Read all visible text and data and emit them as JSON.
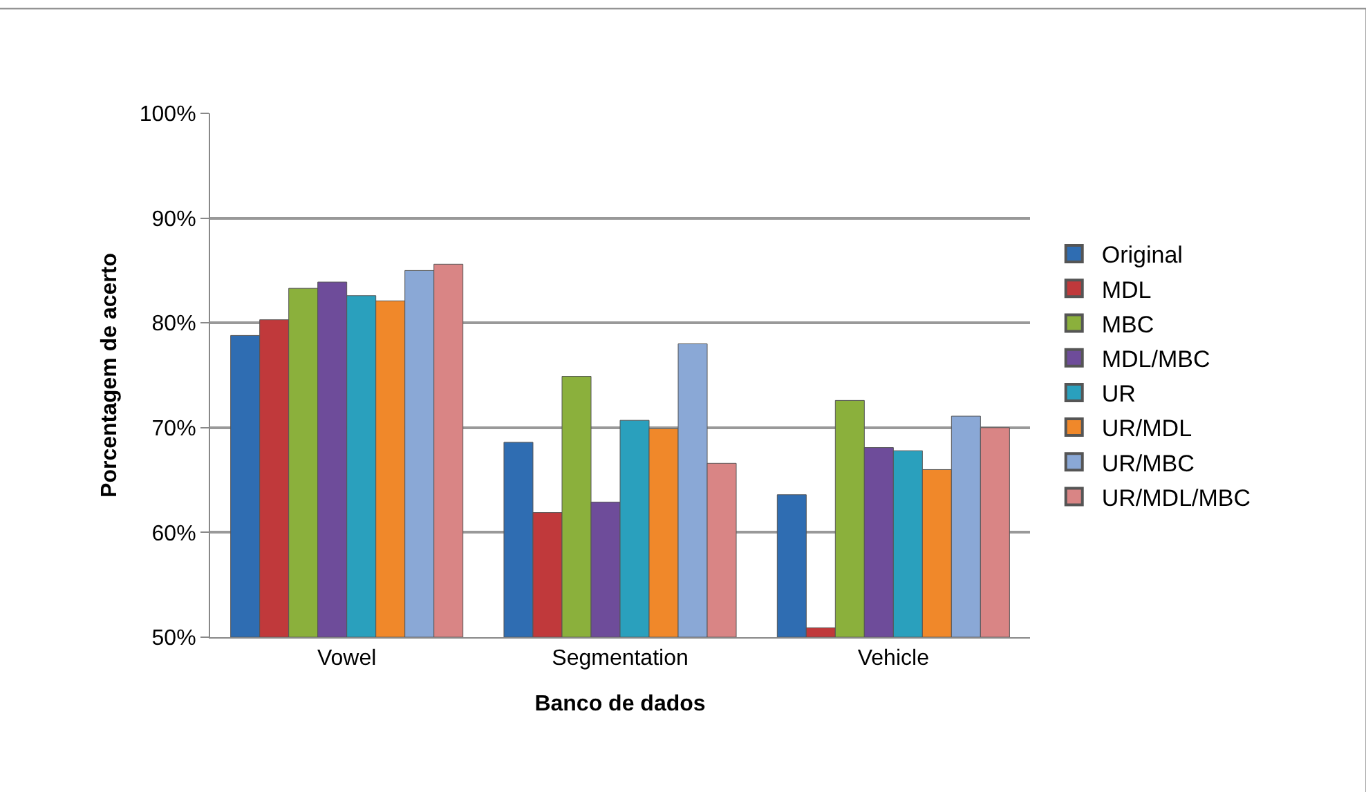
{
  "chart_data": {
    "type": "bar",
    "xlabel": "Banco de dados",
    "ylabel": "Porcentagem de acerto",
    "categories": [
      "Vowel",
      "Segmentation",
      "Vehicle"
    ],
    "series": [
      {
        "name": "Original",
        "color": "#2f6db2",
        "values": [
          78.8,
          68.6,
          63.6
        ]
      },
      {
        "name": "MDL",
        "color": "#c0393b",
        "values": [
          80.3,
          61.9,
          50.9
        ]
      },
      {
        "name": "MBC",
        "color": "#8bb03c",
        "values": [
          83.3,
          74.9,
          72.6
        ]
      },
      {
        "name": "MDL/MBC",
        "color": "#6e4c9a",
        "values": [
          83.9,
          62.9,
          68.1
        ]
      },
      {
        "name": "UR",
        "color": "#2aa0bd",
        "values": [
          82.6,
          70.7,
          67.8
        ]
      },
      {
        "name": "UR/MDL",
        "color": "#f0882a",
        "values": [
          82.1,
          69.9,
          66.0
        ]
      },
      {
        "name": "UR/MBC",
        "color": "#8aa8d6",
        "values": [
          85.0,
          78.0,
          71.1
        ]
      },
      {
        "name": "UR/MDL/MBC",
        "color": "#d98585",
        "values": [
          85.6,
          66.6,
          70.0
        ]
      }
    ],
    "ylim": [
      50,
      100
    ],
    "yticks": [
      {
        "value": 50,
        "label": "50%"
      },
      {
        "value": 60,
        "label": "60%"
      },
      {
        "value": 70,
        "label": "70%"
      },
      {
        "value": 80,
        "label": "80%"
      },
      {
        "value": 90,
        "label": "90%"
      },
      {
        "value": 100,
        "label": "100%"
      }
    ],
    "grid": "y",
    "legend": "right"
  }
}
